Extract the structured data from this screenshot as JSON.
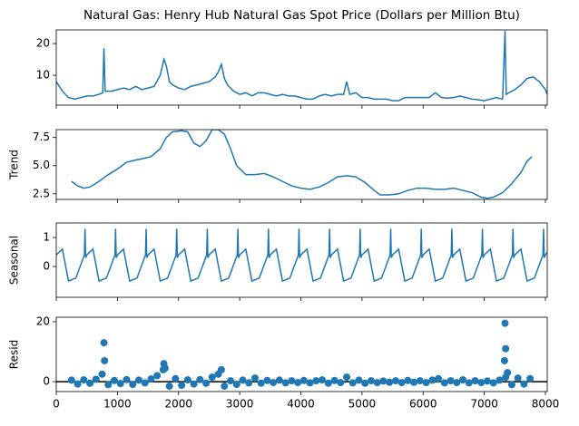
{
  "chart_data": [
    {
      "type": "line",
      "title": "Natural Gas: Henry Hub Natural Gas Spot Price (Dollars per Million Btu)",
      "color": "#1f77b4",
      "x": [
        0,
        100,
        200,
        300,
        400,
        500,
        600,
        700,
        760,
        780,
        800,
        900,
        1000,
        1100,
        1200,
        1300,
        1400,
        1500,
        1600,
        1700,
        1760,
        1800,
        1850,
        1900,
        2000,
        2100,
        2200,
        2300,
        2400,
        2500,
        2600,
        2650,
        2700,
        2750,
        2800,
        2900,
        3000,
        3100,
        3200,
        3300,
        3400,
        3500,
        3600,
        3700,
        3800,
        3900,
        4000,
        4100,
        4200,
        4300,
        4400,
        4500,
        4600,
        4700,
        4750,
        4800,
        4900,
        5000,
        5100,
        5200,
        5300,
        5400,
        5500,
        5600,
        5700,
        5800,
        5900,
        6000,
        6100,
        6200,
        6300,
        6400,
        6500,
        6600,
        6700,
        6800,
        6900,
        7000,
        7100,
        7200,
        7300,
        7340,
        7360,
        7400,
        7500,
        7600,
        7700,
        7800,
        7900,
        8000,
        8030
      ],
      "values": [
        8,
        5,
        3,
        2.5,
        3,
        3.5,
        3.5,
        4,
        4.5,
        18.5,
        5,
        5,
        5.5,
        6,
        5.5,
        6.5,
        5.5,
        6,
        6.5,
        10,
        15,
        13,
        8,
        7,
        6,
        5.5,
        6.5,
        7,
        7.5,
        8,
        9.5,
        11,
        13.5,
        9,
        7,
        5,
        4,
        4.5,
        3.5,
        4.5,
        4.5,
        4,
        3.5,
        4,
        3.5,
        3.5,
        3,
        2.5,
        2.5,
        3.5,
        4,
        3.5,
        4,
        4,
        8,
        4,
        4.5,
        3,
        3,
        2.5,
        2.5,
        2.5,
        2,
        2,
        3,
        3,
        3,
        3,
        3,
        4.5,
        3,
        2.8,
        3,
        3.5,
        3,
        2.5,
        2.3,
        2,
        2.5,
        3,
        2.5,
        24,
        4,
        4.5,
        5.5,
        7,
        9,
        9.5,
        8,
        5.5,
        4
      ],
      "xlim": [
        0,
        8030
      ],
      "ylim": [
        0.6,
        24.3
      ],
      "yticks": [
        10,
        20
      ]
    },
    {
      "type": "line",
      "ylabel": "Trend",
      "color": "#1f77b4",
      "x": [
        250,
        350,
        450,
        550,
        700,
        850,
        1000,
        1150,
        1300,
        1400,
        1550,
        1700,
        1800,
        1900,
        2050,
        2150,
        2250,
        2350,
        2450,
        2550,
        2650,
        2750,
        2850,
        2950,
        3100,
        3250,
        3400,
        3550,
        3700,
        3850,
        4000,
        4150,
        4300,
        4450,
        4600,
        4750,
        4900,
        5050,
        5200,
        5300,
        5450,
        5600,
        5750,
        5900,
        6050,
        6200,
        6350,
        6500,
        6650,
        6800,
        6950,
        7050,
        7150,
        7300,
        7450,
        7600,
        7700,
        7780
      ],
      "values": [
        3.6,
        3.2,
        3.0,
        3.1,
        3.6,
        4.2,
        4.7,
        5.3,
        5.5,
        5.6,
        5.8,
        6.5,
        7.5,
        8.0,
        8.1,
        8.0,
        7.0,
        6.7,
        7.2,
        8.2,
        8.2,
        7.8,
        6.5,
        5.0,
        4.2,
        4.2,
        4.3,
        4.0,
        3.6,
        3.2,
        3.0,
        2.9,
        3.1,
        3.5,
        4.0,
        4.1,
        4.0,
        3.5,
        2.8,
        2.4,
        2.4,
        2.5,
        2.8,
        3.0,
        3.0,
        2.9,
        2.9,
        3.0,
        2.8,
        2.6,
        2.2,
        2.1,
        2.2,
        2.6,
        3.4,
        4.4,
        5.4,
        5.8
      ],
      "xlim": [
        0,
        8030
      ],
      "ylim": [
        2.0,
        8.2
      ],
      "yticks": [
        2.5,
        {
          "value": 5,
          "label": "5.0"
        },
        7.5
      ]
    },
    {
      "type": "line",
      "ylabel": "Seasonal",
      "color": "#1f77b4",
      "x": [
        0,
        100,
        200,
        320,
        460,
        470,
        480,
        500,
        600,
        700,
        820,
        960,
        970,
        980,
        1000,
        1100,
        1200,
        1320,
        1460,
        1470,
        1480,
        1500,
        1600,
        1700,
        1820,
        1960,
        1970,
        1980,
        2000,
        2100,
        2200,
        2320,
        2460,
        2470,
        2480,
        2500,
        2600,
        2700,
        2820,
        2960,
        2970,
        2980,
        3000,
        3100,
        3200,
        3320,
        3460,
        3470,
        3480,
        3500,
        3600,
        3700,
        3820,
        3960,
        3970,
        3980,
        4000,
        4100,
        4200,
        4320,
        4460,
        4470,
        4480,
        4500,
        4600,
        4700,
        4820,
        4960,
        4970,
        4980,
        5000,
        5100,
        5200,
        5320,
        5460,
        5470,
        5480,
        5500,
        5600,
        5700,
        5820,
        5960,
        5970,
        5980,
        6000,
        6100,
        6200,
        6320,
        6460,
        6470,
        6480,
        6500,
        6600,
        6700,
        6820,
        6960,
        6970,
        6980,
        7000,
        7100,
        7200,
        7320,
        7460,
        7470,
        7480,
        7500,
        7600,
        7700,
        7820,
        7960,
        7970,
        7980,
        8000,
        8030
      ],
      "values": [
        0.4,
        0.6,
        -0.5,
        -0.4,
        0.4,
        1.3,
        0.3,
        0.4,
        0.6,
        -0.5,
        -0.4,
        0.4,
        1.3,
        0.3,
        0.4,
        0.6,
        -0.5,
        -0.4,
        0.4,
        1.3,
        0.3,
        0.4,
        0.6,
        -0.5,
        -0.4,
        0.4,
        1.3,
        0.3,
        0.4,
        0.6,
        -0.5,
        -0.4,
        0.4,
        1.3,
        0.3,
        0.4,
        0.6,
        -0.5,
        -0.4,
        0.4,
        1.3,
        0.3,
        0.4,
        0.6,
        -0.5,
        -0.4,
        0.4,
        1.3,
        0.3,
        0.4,
        0.6,
        -0.5,
        -0.4,
        0.4,
        1.3,
        0.3,
        0.4,
        0.6,
        -0.5,
        -0.4,
        0.4,
        1.3,
        0.3,
        0.4,
        0.6,
        -0.5,
        -0.4,
        0.4,
        1.3,
        0.3,
        0.4,
        0.6,
        -0.5,
        -0.4,
        0.4,
        1.3,
        0.3,
        0.4,
        0.6,
        -0.5,
        -0.4,
        0.4,
        1.3,
        0.3,
        0.4,
        0.6,
        -0.5,
        -0.4,
        0.4,
        1.3,
        0.3,
        0.4,
        0.6,
        -0.5,
        -0.4,
        0.4,
        1.3,
        0.3,
        0.4,
        0.6,
        -0.5,
        -0.4,
        0.4,
        1.3,
        0.3,
        0.4,
        0.6,
        -0.5,
        -0.4,
        0.4,
        1.3,
        0.3,
        0.4,
        0.5
      ],
      "xlim": [
        0,
        8030
      ],
      "ylim": [
        -1.06,
        1.5
      ],
      "yticks": [
        0,
        1
      ]
    },
    {
      "type": "scatter",
      "ylabel": "Resid",
      "color": "#1f77b4",
      "x": [
        250,
        350,
        450,
        550,
        650,
        750,
        850,
        950,
        1050,
        1150,
        1250,
        1350,
        1450,
        1550,
        1650,
        1750,
        1850,
        1950,
        2050,
        2150,
        2250,
        2350,
        2450,
        2550,
        2650,
        2750,
        2850,
        2950,
        3050,
        3150,
        3250,
        3350,
        3450,
        3550,
        3650,
        3750,
        3850,
        3950,
        4050,
        4150,
        4250,
        4350,
        4450,
        4550,
        4650,
        4750,
        4850,
        4950,
        5050,
        5150,
        5250,
        5350,
        5450,
        5550,
        5650,
        5750,
        5850,
        5950,
        6050,
        6150,
        6250,
        6350,
        6450,
        6550,
        6650,
        6750,
        6850,
        6950,
        7050,
        7150,
        7250,
        7350,
        7450,
        7550,
        7650,
        7750,
        780,
        790,
        1760,
        1780,
        2700,
        7330,
        7340,
        7350,
        7380
      ],
      "values": [
        0.5,
        -0.8,
        0.6,
        -0.5,
        0.8,
        2.5,
        -1,
        0.4,
        -0.6,
        0.7,
        -0.9,
        0.5,
        -0.4,
        0.9,
        2,
        4,
        -1.5,
        1,
        -1.2,
        0.6,
        -0.8,
        0.7,
        -0.5,
        1.5,
        2.5,
        -1.5,
        0.3,
        -0.9,
        0.5,
        -0.4,
        1.2,
        -0.5,
        0.4,
        -0.3,
        0.5,
        -0.4,
        0.3,
        -0.3,
        0.4,
        -0.4,
        0.3,
        0.6,
        -0.5,
        0.4,
        -0.3,
        1.5,
        -0.4,
        0.5,
        -0.5,
        0.3,
        -0.3,
        0.2,
        -0.2,
        0.3,
        -0.3,
        0.4,
        -0.2,
        0.3,
        -0.3,
        0.5,
        1,
        -0.4,
        0.3,
        -0.3,
        0.6,
        -0.4,
        0.3,
        -0.3,
        0.2,
        -0.4,
        0.5,
        1.5,
        -1,
        1.2,
        -0.8,
        1,
        13,
        7,
        6,
        4.5,
        4,
        7,
        19.5,
        11,
        3
      ],
      "xlim": [
        0,
        8030
      ],
      "ylim": [
        -3.3,
        21.5
      ],
      "yticks": [
        0,
        20
      ],
      "baseline": 0,
      "xticks": [
        0,
        1000,
        2000,
        3000,
        4000,
        5000,
        6000,
        7000,
        8000
      ]
    }
  ]
}
